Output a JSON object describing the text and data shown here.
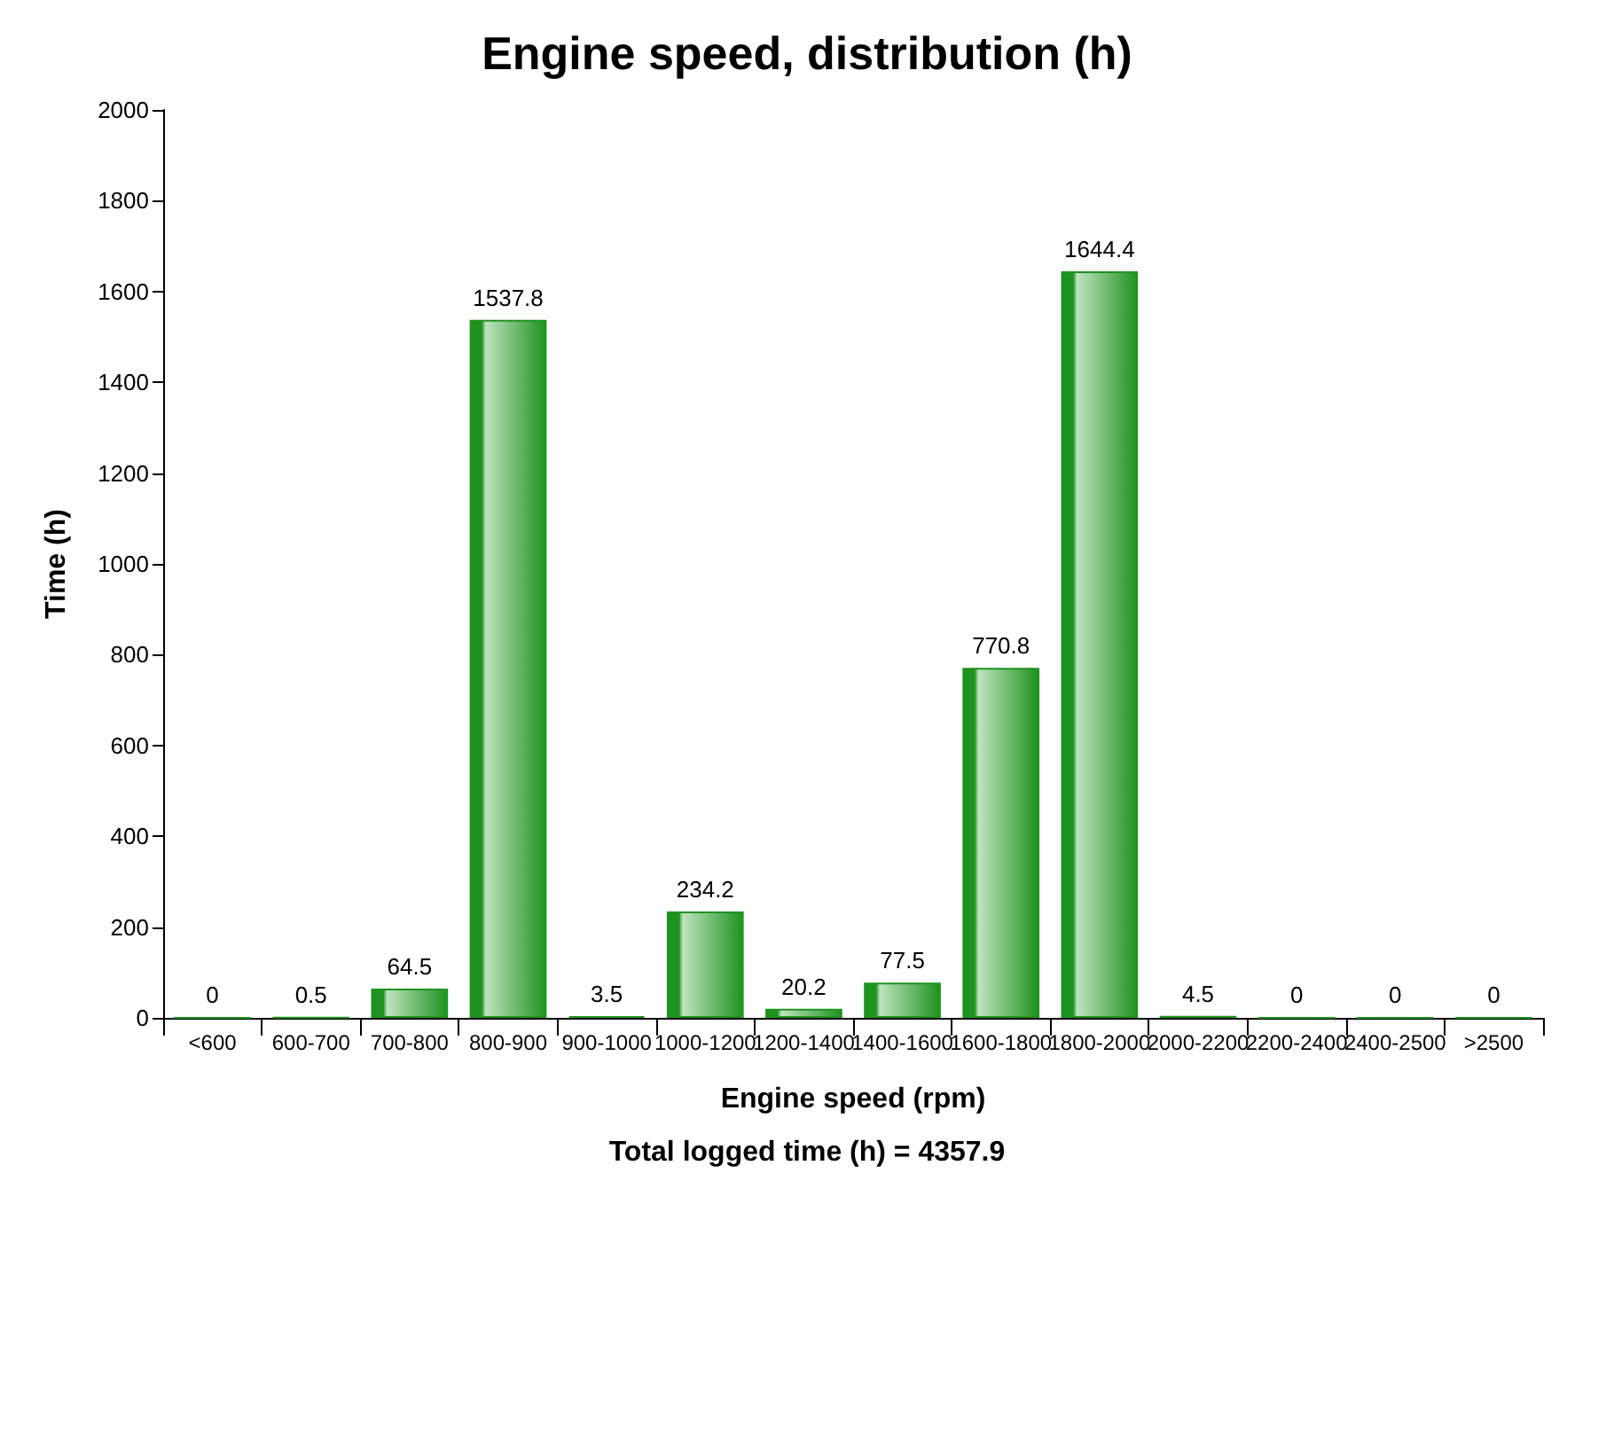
{
  "chart_data": {
    "type": "bar",
    "title": "Engine speed, distribution (h)",
    "xlabel": "Engine speed (rpm)",
    "ylabel": "Time (h)",
    "categories": [
      "<600",
      "600-700",
      "700-800",
      "800-900",
      "900-1000",
      "1000-1200",
      "1200-1400",
      "1400-1600",
      "1600-1800",
      "1800-2000",
      "2000-2200",
      "2200-2400",
      "2400-2500",
      ">2500"
    ],
    "values": [
      0,
      0.5,
      64.5,
      1537.8,
      3.5,
      234.2,
      20.2,
      77.5,
      770.8,
      1644.4,
      4.5,
      0,
      0,
      0
    ],
    "color": "#1e931e",
    "ylim": [
      0,
      2000
    ],
    "yticks": [
      0,
      200,
      400,
      600,
      800,
      1000,
      1200,
      1400,
      1600,
      1800,
      2000
    ],
    "grid": false,
    "data_labels": true,
    "annotations": [
      "Total logged time (h) = 4357.9"
    ]
  }
}
